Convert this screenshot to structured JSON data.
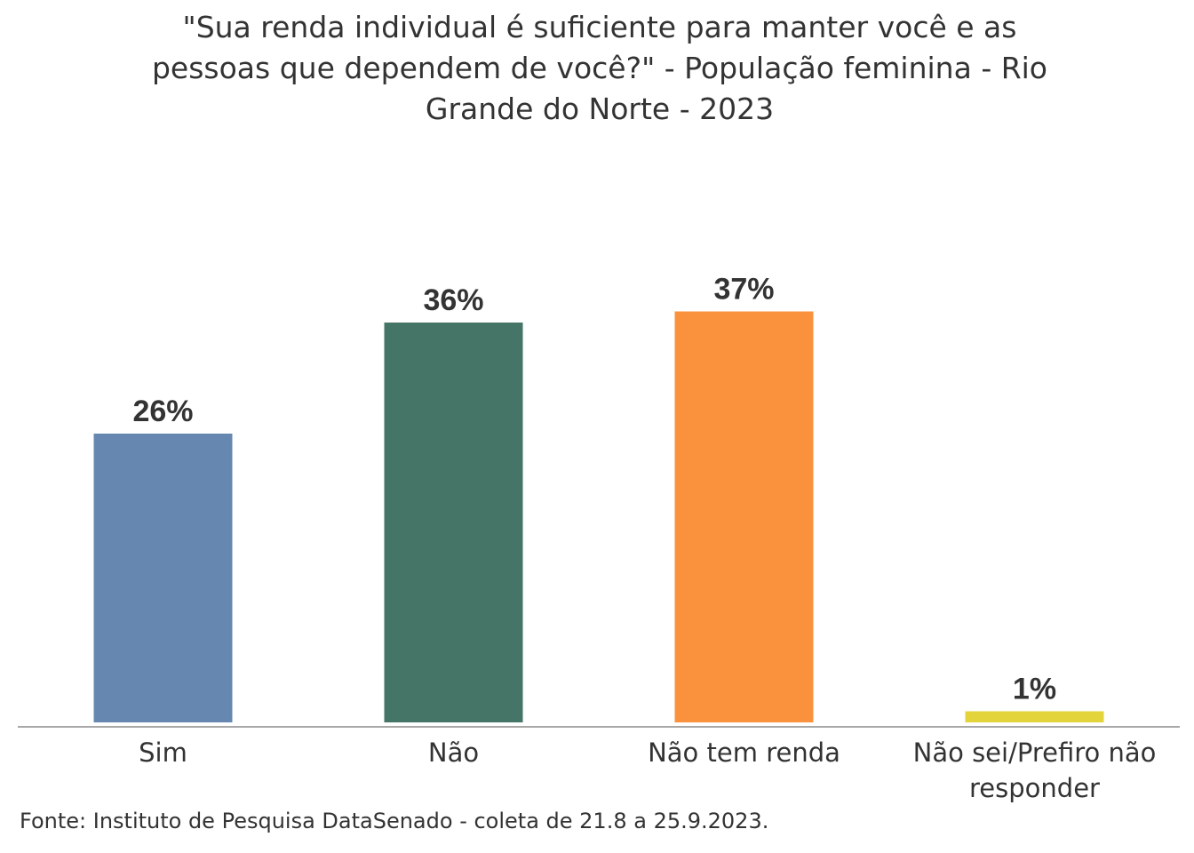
{
  "chart_data": {
    "type": "bar",
    "title_lines": [
      "\"Sua renda individual é suficiente para manter você e as",
      "pessoas que dependem de você?\" - População feminina - Rio",
      "Grande do Norte - 2023"
    ],
    "categories": [
      [
        "Sim"
      ],
      [
        "Não"
      ],
      [
        "Não tem renda"
      ],
      [
        "Não sei/Prefiro não",
        "responder"
      ]
    ],
    "values": [
      26,
      36,
      37,
      1
    ],
    "value_labels": [
      "26%",
      "36%",
      "37%",
      "1%"
    ],
    "colors": [
      "#6688B0",
      "#447566",
      "#FA913D",
      "#E3D43B"
    ],
    "ylim": [
      0,
      37
    ],
    "grid": false,
    "legend": "none"
  },
  "source": "Fonte: Instituto de Pesquisa DataSenado - coleta de 21.8 a 25.9.2023."
}
